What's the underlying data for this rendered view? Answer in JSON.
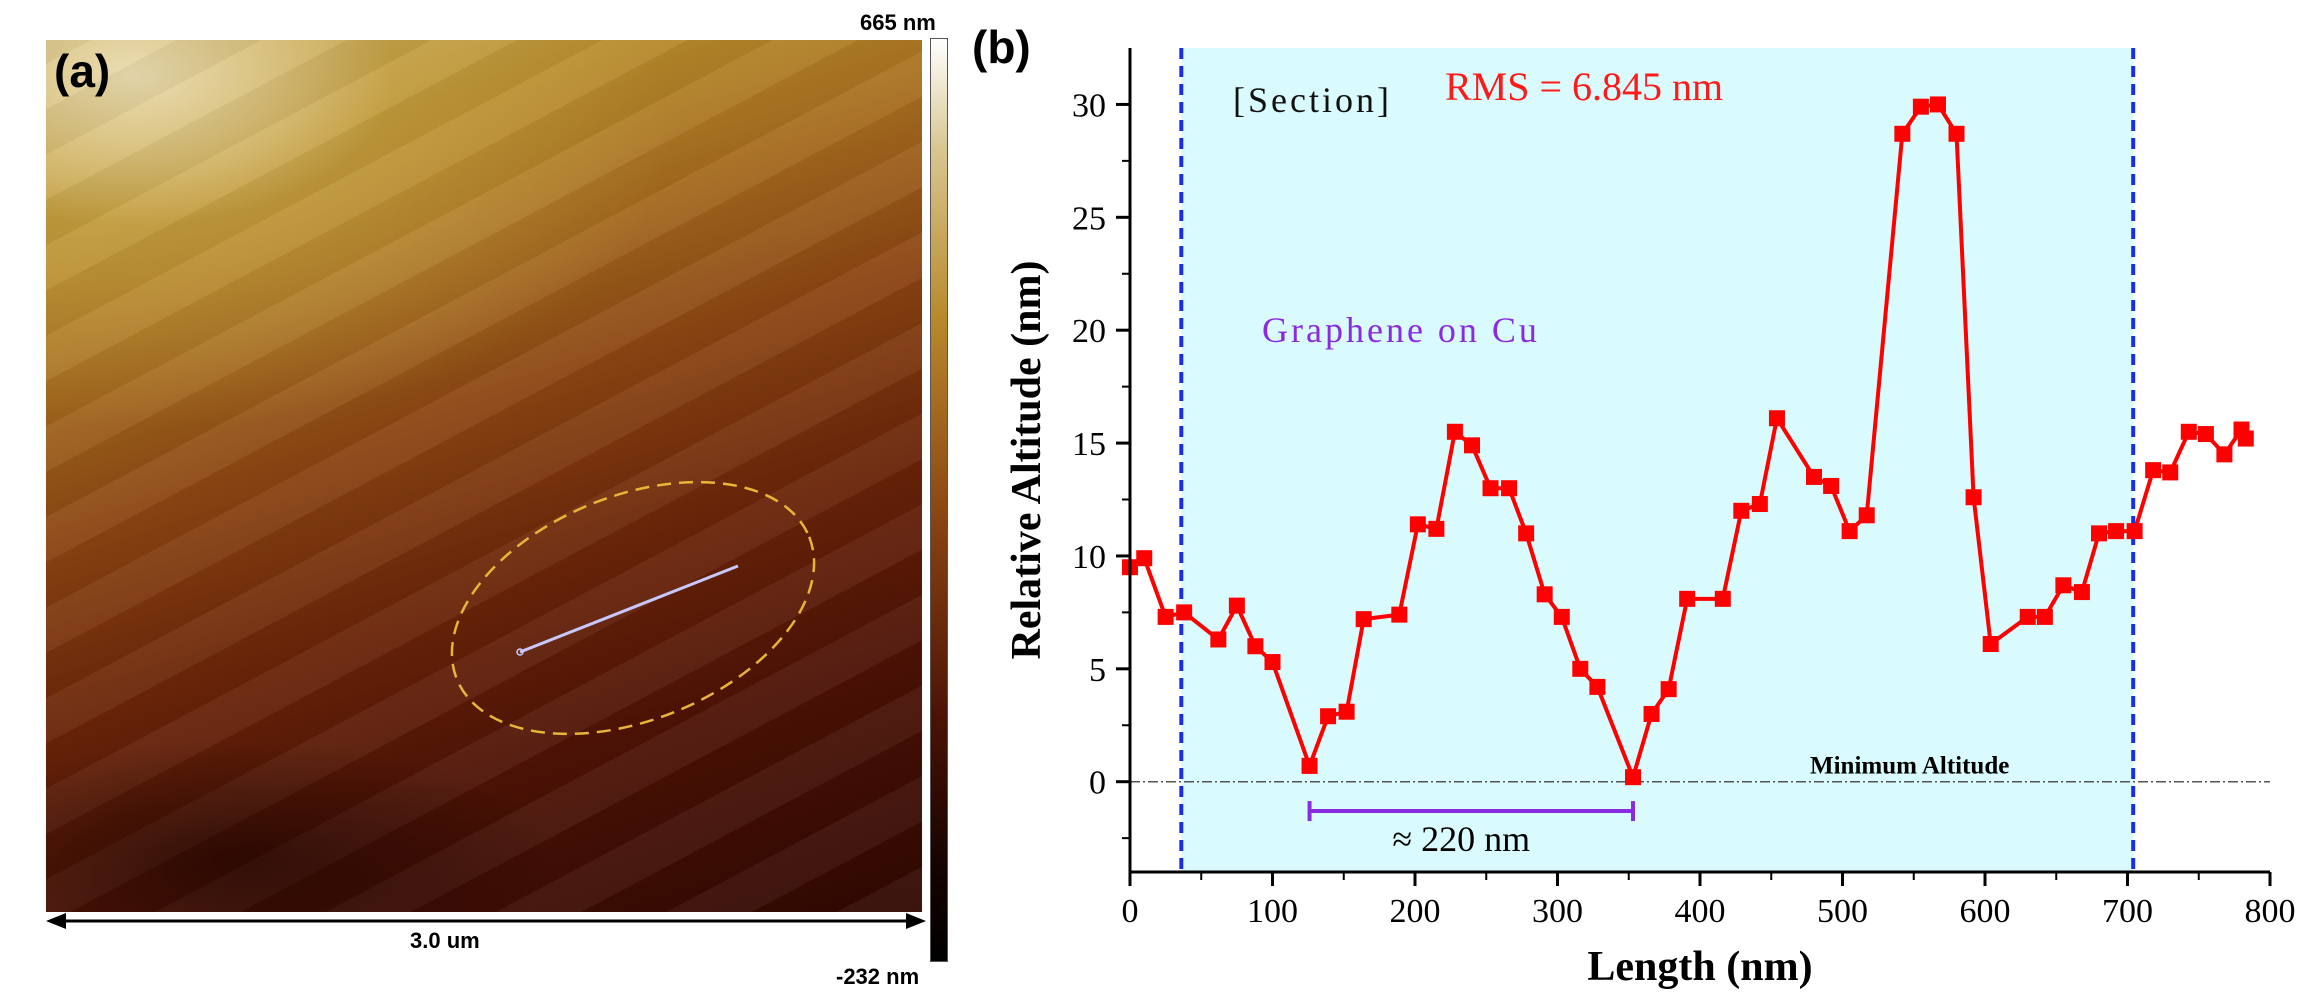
{
  "panel_a": {
    "label": "(a)",
    "scale_text": "3.0 um",
    "colorbar_max": "665 nm",
    "colorbar_min": "-232 nm",
    "ellipse_color": "#e8b43a",
    "line_color": "#c8c8ff"
  },
  "panel_b": {
    "label": "(b)"
  },
  "chart_data": {
    "type": "line",
    "title": "",
    "xlabel": "Length (nm)",
    "ylabel": "Relative Altitude (nm)",
    "xlim": [
      0,
      800
    ],
    "ylim": [
      -4,
      32.5
    ],
    "xticks": [
      0,
      100,
      200,
      300,
      400,
      500,
      600,
      700,
      800
    ],
    "yticks": [
      0,
      5,
      10,
      15,
      20,
      25,
      30
    ],
    "grid": false,
    "series": [
      {
        "color": "#ff0000",
        "marker": "square",
        "x": [
          0,
          10,
          25,
          38,
          62,
          75,
          88,
          100,
          126,
          139,
          152,
          164,
          189,
          202,
          215,
          228,
          240,
          253,
          266,
          278,
          291,
          303,
          316,
          328,
          353,
          366,
          378,
          391,
          416,
          429,
          442,
          454,
          480,
          492,
          505,
          517,
          542,
          555,
          567,
          580,
          592,
          604,
          630,
          642,
          655,
          668,
          680,
          692,
          705,
          718,
          730,
          743,
          755,
          768,
          780,
          783
        ],
        "y": [
          9.5,
          9.9,
          7.3,
          7.5,
          6.3,
          7.8,
          6.0,
          5.3,
          0.7,
          2.9,
          3.1,
          7.2,
          7.4,
          11.4,
          11.2,
          15.5,
          14.9,
          13.0,
          13.0,
          11.0,
          8.3,
          7.3,
          5.0,
          4.2,
          0.2,
          3.0,
          4.1,
          8.1,
          8.1,
          12.0,
          12.3,
          16.1,
          13.5,
          13.1,
          11.1,
          11.8,
          28.7,
          29.9,
          30.0,
          28.7,
          12.6,
          6.1,
          7.3,
          7.3,
          8.7,
          8.4,
          11.0,
          11.1,
          11.1,
          13.8,
          13.7,
          15.5,
          15.4,
          14.5,
          15.6,
          15.2
        ]
      }
    ],
    "shaded_region": {
      "x_start": 36,
      "x_end": 704,
      "color": "#d9fbfd"
    },
    "vertical_lines": [
      {
        "x": 36,
        "color": "#1a2ee6",
        "style": "dashed"
      },
      {
        "x": 704,
        "color": "#1a2ee6",
        "style": "dashed"
      }
    ],
    "baseline": {
      "y": 0,
      "label": "Minimum Altitude"
    },
    "annotations": {
      "section": "[Section]",
      "rms": "RMS = 6.845 nm",
      "material": "Graphene on Cu",
      "span_label": "≈ 220 nm",
      "span_x": [
        126,
        353
      ],
      "span_y": -1.3,
      "rms_color": "#ff1a1a",
      "material_color": "#8a2be2",
      "span_color": "#8a2be2"
    }
  }
}
